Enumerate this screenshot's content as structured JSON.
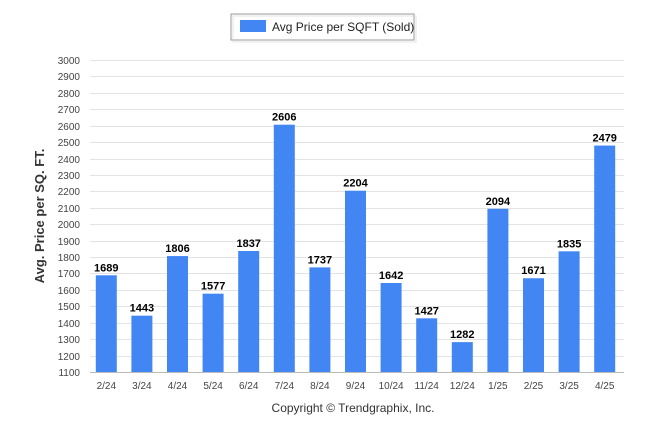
{
  "chart_data": {
    "type": "bar",
    "legend": "Avg Price per SQFT (Sold)",
    "legend_position": "top-center",
    "ylabel": "Avg. Price per SQ. FT.",
    "xlabel": "",
    "footer": "Copyright © Trendgraphix, Inc.",
    "categories": [
      "2/24",
      "3/24",
      "4/24",
      "5/24",
      "6/24",
      "7/24",
      "8/24",
      "9/24",
      "10/24",
      "11/24",
      "12/24",
      "1/25",
      "2/25",
      "3/25",
      "4/25"
    ],
    "values": [
      1689,
      1443,
      1806,
      1577,
      1837,
      2606,
      1737,
      2204,
      1642,
      1427,
      1282,
      2094,
      1671,
      1835,
      2479
    ],
    "value_labels": [
      "1689",
      "1443",
      "1806",
      "1577",
      "1837",
      "2606",
      "1737",
      "2204",
      "1642",
      "1427",
      "1282",
      "2094",
      "1671",
      "1835",
      "2479"
    ],
    "ylim": [
      1100,
      3000
    ],
    "yticks": [
      1100,
      1200,
      1300,
      1400,
      1500,
      1600,
      1700,
      1800,
      1900,
      2000,
      2100,
      2200,
      2300,
      2400,
      2500,
      2600,
      2700,
      2800,
      2900,
      3000
    ],
    "ytick_labels": [
      "1100",
      "1200",
      "1300",
      "1400",
      "1500",
      "1600",
      "1700",
      "1800",
      "1900",
      "2000",
      "2100",
      "2200",
      "2300",
      "2400",
      "2500",
      "2600",
      "2700",
      "2800",
      "2900",
      "3000"
    ],
    "grid": true,
    "bar_color": "#4286f4"
  }
}
